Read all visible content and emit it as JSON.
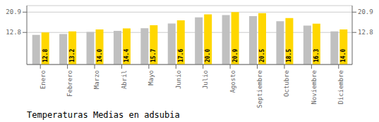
{
  "chart_data": {
    "type": "bar",
    "title": "Temperaturas Medias en adsubia",
    "categories": [
      "Enero",
      "Febrero",
      "Marzo",
      "Abril",
      "Mayo",
      "Junio",
      "Julio",
      "Agosto",
      "Septiembre",
      "Octubre",
      "Noviembre",
      "Diciembre"
    ],
    "series": [
      {
        "color": "#C0C0C0",
        "values": [
          11.8,
          12.2,
          13.0,
          13.4,
          14.5,
          16.4,
          18.8,
          19.7,
          19.3,
          17.3,
          15.5,
          13.2
        ]
      },
      {
        "color": "#FFD700",
        "values": [
          12.8,
          13.2,
          14.0,
          14.4,
          15.7,
          17.6,
          20.0,
          20.9,
          20.5,
          18.5,
          16.3,
          14.0
        ],
        "data_labels": true,
        "value_labels": [
          "12.8",
          "13.2",
          "14.0",
          "14.4",
          "15.7",
          "17.6",
          "20.0",
          "20.9",
          "20.5",
          "18.5",
          "16.3",
          "14.0"
        ]
      }
    ],
    "ylim": [
      0,
      23.5
    ],
    "yticks": [
      12.8,
      20.9
    ],
    "y2lim": [
      0,
      23.5
    ],
    "y2ticks": [
      12.8,
      20.9
    ],
    "grid": true
  }
}
